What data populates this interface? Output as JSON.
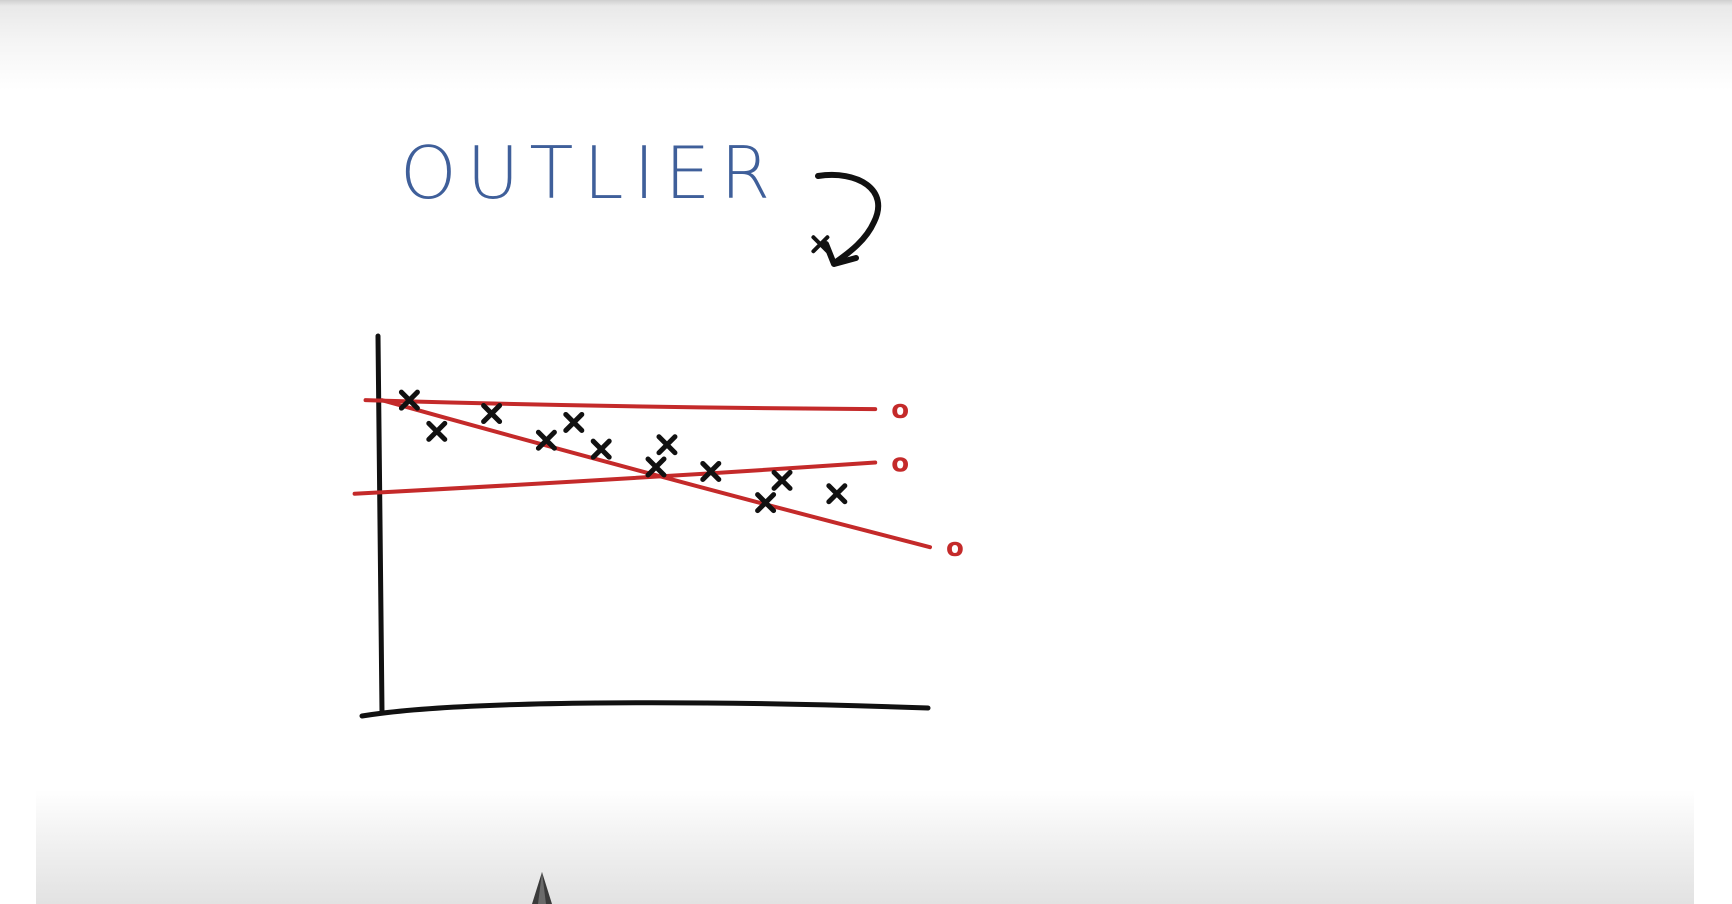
{
  "annotation": {
    "label": "OUTLIER",
    "label_color": "#3f5f9a"
  },
  "colors": {
    "ink": "#111111",
    "fit_lines": "#c42a2a",
    "label": "#3f5f9a"
  },
  "chart_data": {
    "type": "scatter",
    "title": "",
    "xlabel": "",
    "ylabel": "",
    "points": [
      {
        "x": 0.5,
        "y": 7.0
      },
      {
        "x": 1.0,
        "y": 6.3
      },
      {
        "x": 2.0,
        "y": 6.7
      },
      {
        "x": 3.0,
        "y": 6.1
      },
      {
        "x": 3.5,
        "y": 6.5
      },
      {
        "x": 4.0,
        "y": 5.9
      },
      {
        "x": 5.0,
        "y": 5.5
      },
      {
        "x": 5.2,
        "y": 6.0
      },
      {
        "x": 6.0,
        "y": 5.4
      },
      {
        "x": 7.0,
        "y": 4.7
      },
      {
        "x": 7.3,
        "y": 5.2
      },
      {
        "x": 8.3,
        "y": 4.9
      },
      {
        "x": 8.0,
        "y": 10.5,
        "outlier": true
      }
    ],
    "fit_lines": [
      {
        "x": [
          -0.3,
          9.0
        ],
        "y": [
          7.0,
          6.8
        ],
        "end_label": "o"
      },
      {
        "x": [
          -0.5,
          9.0
        ],
        "y": [
          4.9,
          5.6
        ],
        "end_label": "o"
      },
      {
        "x": [
          0.0,
          10.0
        ],
        "y": [
          7.0,
          3.7
        ],
        "end_label": "o"
      }
    ],
    "xlim": [
      0,
      10
    ],
    "ylim": [
      0,
      11
    ],
    "grid": false
  }
}
